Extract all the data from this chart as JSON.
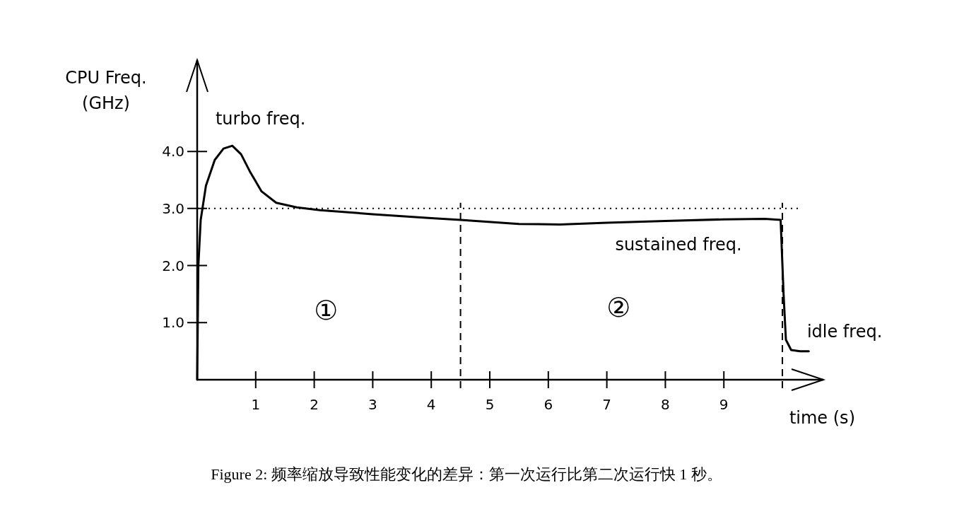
{
  "chart_data": {
    "type": "line",
    "xlabel": "time (s)",
    "ylabel": "CPU Freq.\n(GHz)",
    "x": [
      0,
      0.02,
      0.06,
      0.15,
      0.3,
      0.45,
      0.6,
      0.75,
      0.9,
      1.1,
      1.35,
      1.7,
      2.1,
      3,
      4,
      4.5,
      5.5,
      6.2,
      7,
      8,
      9,
      9.7,
      9.97,
      10.02,
      10.06,
      10.15,
      10.3,
      10.45
    ],
    "series": [
      {
        "color": "#000000",
        "values": [
          0,
          2.0,
          2.8,
          3.4,
          3.85,
          4.05,
          4.1,
          3.95,
          3.65,
          3.3,
          3.1,
          3.02,
          2.97,
          2.9,
          2.83,
          2.8,
          2.73,
          2.72,
          2.75,
          2.78,
          2.81,
          2.82,
          2.8,
          1.5,
          0.7,
          0.52,
          0.5,
          0.5
        ]
      }
    ],
    "xlim": [
      0,
      10.7
    ],
    "ylim": [
      0,
      5.6
    ],
    "xticks": [
      1,
      2,
      3,
      4,
      5,
      6,
      7,
      8,
      9
    ],
    "yticks": [
      {
        "value": 1,
        "label": "1.0"
      },
      {
        "value": 2,
        "label": "2.0"
      },
      {
        "value": 3,
        "label": "3.0"
      },
      {
        "value": 4,
        "label": "4.0"
      }
    ],
    "ref_lines": [
      {
        "axis": "y",
        "value": 3,
        "line_style": "dotted"
      },
      {
        "axis": "x",
        "value": 4.5,
        "line_style": "dashed"
      },
      {
        "axis": "x",
        "value": 10,
        "line_style": "dashed"
      }
    ],
    "grid": false,
    "marker": "none",
    "line_style": "solid",
    "annotations": [
      {
        "text": "turbo freq.",
        "x": 0.6,
        "y": 4.1
      },
      {
        "text": "sustained freq.",
        "x": 7.5,
        "y": 2.76
      },
      {
        "text": "idle freq.",
        "x": 10.3,
        "y": 0.5
      },
      "①",
      "②",
      "Figure 2: 频率缩放导致性能变化的差异：第一次运行比第二次运行快 1 秒。"
    ]
  }
}
